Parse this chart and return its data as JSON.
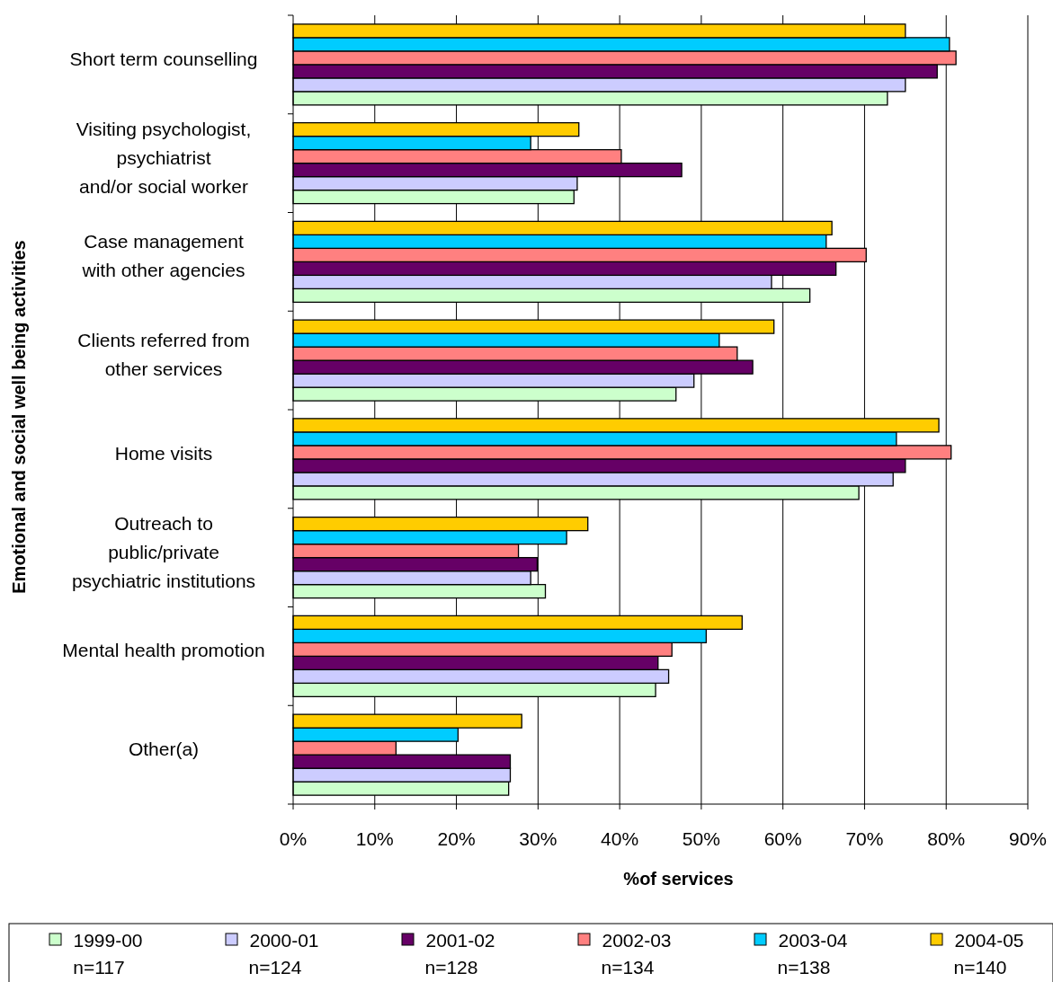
{
  "chart_data": {
    "type": "bar",
    "orientation": "horizontal",
    "ylabel": "Emotional and social well being activities",
    "xlabel": "%of services",
    "categories": [
      "Short term counselling",
      "Visiting psychologist,\npsychiatrist\nand/or social worker",
      "Case management\nwith other agencies",
      "Clients referred from\nother services",
      "Home visits",
      "Outreach to\npublic/private\npsychiatric institutions",
      "Mental health promotion",
      "Other(a)"
    ],
    "series": [
      {
        "name": "1999-00\nn=117",
        "color": "#ccffcc",
        "values": [
          72.8,
          34.4,
          63.3,
          46.9,
          69.3,
          30.9,
          44.4,
          26.4
        ]
      },
      {
        "name": "2000-01\nn=124",
        "color": "#ccccff",
        "values": [
          75,
          34.8,
          58.6,
          49.1,
          73.5,
          29.1,
          46,
          26.6
        ]
      },
      {
        "name": "2001-02\nn=128",
        "color": "#660066",
        "values": [
          78.9,
          47.6,
          66.5,
          56.3,
          75,
          29.9,
          44.7,
          26.6
        ]
      },
      {
        "name": "2002-03\nn=134",
        "color": "#ff8080",
        "values": [
          81.2,
          40.2,
          70.2,
          54.4,
          80.6,
          27.6,
          46.4,
          12.6
        ]
      },
      {
        "name": "2003-04\nn=138",
        "color": "#00ccff",
        "values": [
          80.4,
          29.1,
          65.3,
          52.2,
          73.9,
          33.5,
          50.6,
          20.2
        ]
      },
      {
        "name": "2004-05\nn=140",
        "color": "#ffcc00",
        "values": [
          75,
          35,
          66,
          58.9,
          79.1,
          36.1,
          55,
          28
        ]
      }
    ],
    "xlim": [
      0,
      90
    ],
    "xticks": [
      {
        "value": 0,
        "label": "0%"
      },
      {
        "value": 10,
        "label": "10%"
      },
      {
        "value": 20,
        "label": "20%"
      },
      {
        "value": 30,
        "label": "30%"
      },
      {
        "value": 40,
        "label": "40%"
      },
      {
        "value": 50,
        "label": "50%"
      },
      {
        "value": 60,
        "label": "60%"
      },
      {
        "value": 70,
        "label": "70%"
      },
      {
        "value": 80,
        "label": "80%"
      },
      {
        "value": 90,
        "label": "90%"
      }
    ],
    "grid": "x",
    "legend": "bottom"
  }
}
